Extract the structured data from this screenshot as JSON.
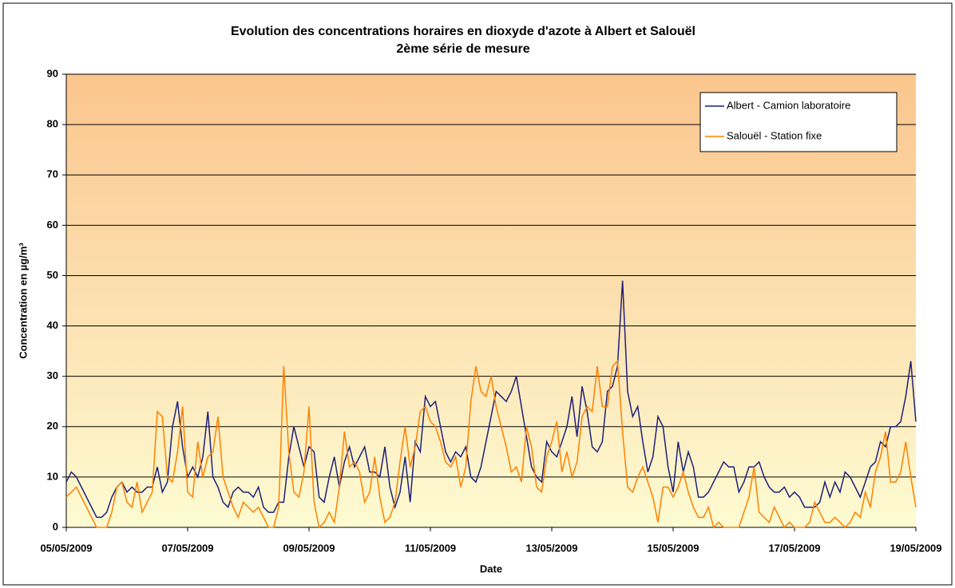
{
  "chart_data": {
    "type": "line",
    "title": "Evolution des concentrations horaires en dioxyde d'azote à Albert et Salouël",
    "subtitle": "2ème série de mesure",
    "x_label": "Date",
    "y_label": "Concentration en µg/m³",
    "categories": [
      "05/05/2009",
      null,
      null,
      null,
      null,
      null,
      null,
      null,
      null,
      null,
      null,
      null,
      null,
      null,
      null,
      null,
      null,
      null,
      null,
      null,
      null,
      null,
      null,
      null,
      "07/05/2009",
      null,
      null,
      null,
      null,
      null,
      null,
      null,
      null,
      null,
      null,
      null,
      null,
      null,
      null,
      null,
      null,
      null,
      null,
      null,
      null,
      null,
      null,
      null,
      "09/05/2009",
      null,
      null,
      null,
      null,
      null,
      null,
      null,
      null,
      null,
      null,
      null,
      null,
      null,
      null,
      null,
      null,
      null,
      null,
      null,
      null,
      null,
      null,
      null,
      "11/05/2009",
      null,
      null,
      null,
      null,
      null,
      null,
      null,
      null,
      null,
      null,
      null,
      null,
      null,
      null,
      null,
      null,
      null,
      null,
      null,
      null,
      null,
      null,
      null,
      "13/05/2009",
      null,
      null,
      null,
      null,
      null,
      null,
      null,
      null,
      null,
      null,
      null,
      null,
      null,
      null,
      null,
      null,
      null,
      null,
      null,
      null,
      null,
      null,
      null,
      "15/05/2009",
      null,
      null,
      null,
      null,
      null,
      null,
      null,
      null,
      null,
      null,
      null,
      null,
      null,
      null,
      null,
      null,
      null,
      null,
      null,
      null,
      null,
      null,
      null,
      "17/05/2009",
      null,
      null,
      null,
      null,
      null,
      null,
      null,
      null,
      null,
      null,
      null,
      null,
      null,
      null,
      null,
      null,
      null,
      null,
      null,
      null,
      null,
      null,
      null,
      "19/05/2009"
    ],
    "series": [
      {
        "name": "Albert - Camion laboratoire",
        "color": "#1f1f7a",
        "values": [
          9,
          11,
          10,
          8,
          6,
          4,
          2,
          2,
          3,
          6,
          8,
          9,
          7,
          8,
          7,
          7,
          8,
          8,
          12,
          7,
          9,
          20,
          25,
          16,
          10,
          12,
          10,
          14,
          23,
          10,
          8,
          5,
          4,
          7,
          8,
          7,
          7,
          6,
          8,
          4,
          3,
          3,
          5,
          5,
          14,
          20,
          16,
          12,
          16,
          15,
          6,
          5,
          10,
          14,
          8,
          13,
          16,
          12,
          14,
          16,
          11,
          11,
          10,
          16,
          8,
          4,
          7,
          14,
          5,
          17,
          15,
          26,
          24,
          25,
          20,
          15,
          13,
          15,
          14,
          16,
          10,
          9,
          12,
          17,
          22,
          27,
          26,
          25,
          27,
          30,
          24,
          18,
          12,
          10,
          9,
          17,
          15,
          14,
          17,
          20,
          26,
          18,
          28,
          23,
          16,
          15,
          17,
          27,
          28,
          32,
          49,
          27,
          22,
          24,
          17,
          11,
          14,
          22,
          20,
          12,
          7,
          17,
          11,
          15,
          12,
          6,
          6,
          7,
          9,
          11,
          13,
          12,
          12,
          7,
          9,
          12,
          12,
          13,
          10,
          8,
          7,
          7,
          8,
          6,
          7,
          6,
          4,
          4,
          4,
          5,
          9,
          6,
          9,
          7,
          11,
          10,
          8,
          6,
          9,
          12,
          13,
          17,
          16,
          20,
          20,
          21,
          26,
          33,
          21
        ]
      },
      {
        "name": "Salouël - Station fixe",
        "color": "#ff8000",
        "values": [
          6,
          7,
          8,
          6,
          4,
          2,
          0,
          0,
          0,
          3,
          8,
          9,
          5,
          4,
          9,
          3,
          5,
          7,
          23,
          22,
          10,
          9,
          15,
          24,
          7,
          6,
          17,
          10,
          14,
          15,
          22,
          10,
          7,
          4,
          2,
          5,
          4,
          3,
          4,
          2,
          0,
          0,
          4,
          32,
          15,
          7,
          6,
          11,
          24,
          5,
          0,
          1,
          3,
          1,
          8,
          19,
          12,
          13,
          11,
          5,
          7,
          14,
          6,
          1,
          2,
          5,
          13,
          20,
          12,
          16,
          23,
          24,
          21,
          20,
          17,
          13,
          12,
          14,
          8,
          12,
          25,
          32,
          27,
          26,
          30,
          24,
          20,
          16,
          11,
          12,
          9,
          20,
          16,
          8,
          7,
          14,
          17,
          21,
          11,
          15,
          10,
          13,
          22,
          24,
          23,
          32,
          24,
          24,
          32,
          33,
          19,
          8,
          7,
          10,
          12,
          9,
          6,
          1,
          8,
          8,
          6,
          8,
          11,
          7,
          4,
          2,
          2,
          4,
          0,
          1,
          0,
          0,
          0,
          0,
          3,
          6,
          12,
          3,
          2,
          1,
          4,
          2,
          0,
          1,
          0,
          0,
          0,
          1,
          5,
          3,
          1,
          1,
          2,
          1,
          0,
          1,
          3,
          2,
          7,
          4,
          11,
          14,
          19,
          9,
          9,
          11,
          17,
          10,
          4
        ]
      }
    ],
    "ylim": [
      0,
      90
    ],
    "yticks": [
      0,
      10,
      20,
      30,
      40,
      50,
      60,
      70,
      80,
      90
    ],
    "grid": true,
    "legend": "top-right"
  }
}
